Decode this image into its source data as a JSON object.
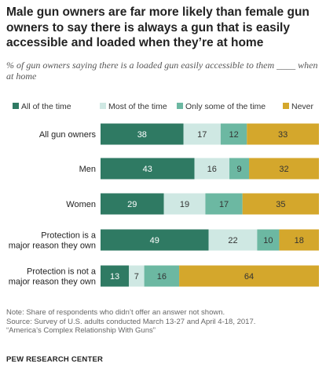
{
  "title": "Male gun owners are far more likely than female gun owners to say there is always a gun that is easily accessible and loaded when they’re at home",
  "subtitle": "% of gun owners saying there is a loaded gun easily accessible to them ____ when at home",
  "colors": {
    "all_of_the_time": "#2f7a63",
    "most_of_the_time": "#cfe8e3",
    "only_some_of_the_time": "#6cb8a2",
    "never": "#d4a72c"
  },
  "chart_data": {
    "type": "bar",
    "orientation": "horizontal",
    "stacked": true,
    "categories": [
      "All gun owners",
      "Men",
      "Women",
      "Protection is a major reason they own",
      "Protection is not a major reason they own"
    ],
    "series": [
      {
        "name": "All of the time",
        "values": [
          38,
          43,
          29,
          49,
          13
        ]
      },
      {
        "name": "Most of the time",
        "values": [
          17,
          16,
          19,
          22,
          7
        ]
      },
      {
        "name": "Only some of the time",
        "values": [
          12,
          9,
          17,
          10,
          16
        ]
      },
      {
        "name": "Never",
        "values": [
          33,
          32,
          35,
          18,
          64
        ]
      }
    ],
    "legend_position": "top",
    "grid": false
  },
  "notes": [
    "Note: Share of respondents who didn’t offer an answer not shown.",
    "Source: Survey of U.S. adults conducted March 13-27 and April 4-18, 2017.",
    "“America’s Complex Relationship With Guns”"
  ],
  "source_org": "PEW RESEARCH CENTER"
}
